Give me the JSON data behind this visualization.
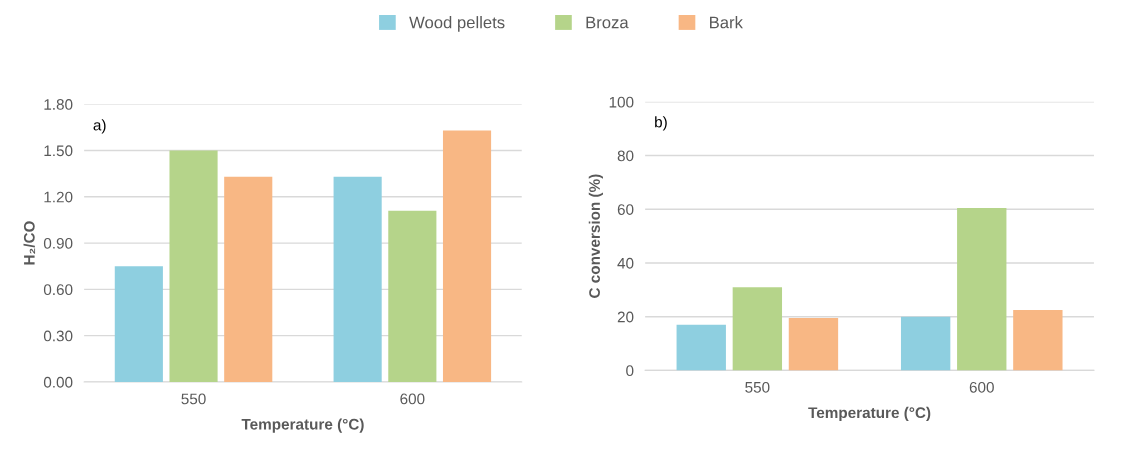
{
  "chart_data": [
    {
      "type": "bar",
      "categories": [
        "550",
        "600"
      ],
      "xlabel": "Temperature (°C)",
      "ylabel": "H₂/CO",
      "annotations": [
        "a)"
      ],
      "series": [
        {
          "name": "Wood pellets",
          "color": "#8ecfe0",
          "values": [
            0.75,
            1.33
          ]
        },
        {
          "name": "Broza",
          "color": "#b5d48a",
          "values": [
            1.5,
            1.11
          ]
        },
        {
          "name": "Bark",
          "color": "#f8b784",
          "values": [
            1.33,
            1.63
          ]
        }
      ],
      "ylim": [
        0,
        1.8
      ],
      "yticks": [
        {
          "value": 0,
          "label": "0.00"
        },
        {
          "value": 0.3,
          "label": "0.30"
        },
        {
          "value": 0.6,
          "label": "0.60"
        },
        {
          "value": 0.9,
          "label": "0.90"
        },
        {
          "value": 1.2,
          "label": "1.20"
        },
        {
          "value": 1.5,
          "label": "1.50"
        },
        {
          "value": 1.8,
          "label": "1.80"
        }
      ],
      "grid": "y",
      "legend": "top"
    },
    {
      "type": "bar",
      "categories": [
        "550",
        "600"
      ],
      "xlabel": "Temperature (°C)",
      "ylabel": "C conversion (%)",
      "annotations": [
        "b)"
      ],
      "series": [
        {
          "color": "#8ecfe0",
          "values": [
            17,
            20
          ]
        },
        {
          "color": "#b5d48a",
          "values": [
            31,
            60.5
          ]
        },
        {
          "color": "#f8b784",
          "values": [
            19.5,
            22.5
          ]
        }
      ],
      "ylim": [
        0,
        100
      ],
      "yticks": [
        0,
        20,
        40,
        60,
        80,
        100
      ],
      "grid": "y"
    }
  ]
}
